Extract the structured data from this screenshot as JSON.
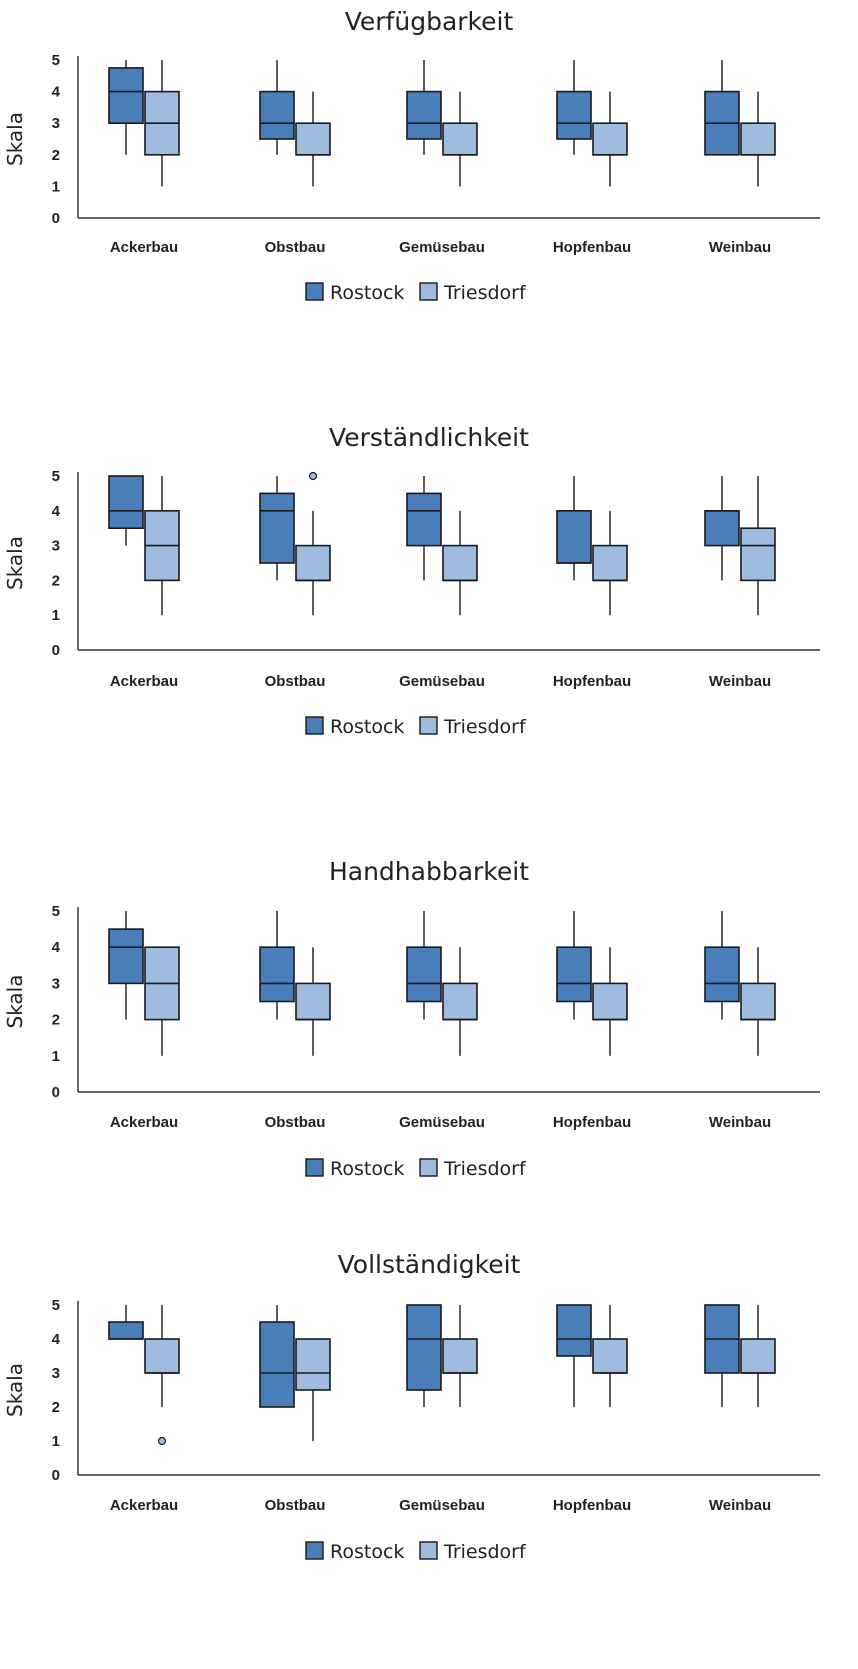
{
  "colors": {
    "Rostock": "#4a7ebb",
    "Triesdorf": "#9ebbe0"
  },
  "chart_data": [
    {
      "type": "boxplot",
      "title": "Verfügbarkeit",
      "ylabel": "Skala",
      "yticks": [
        "0",
        "1",
        "2",
        "3",
        "4",
        "5"
      ],
      "ylim": [
        0,
        5
      ],
      "categories": [
        "Ackerbau",
        "Obstbau",
        "Gemüsebau",
        "Hopfenbau",
        "Weinbau"
      ],
      "legend": "bottom-center",
      "series": [
        {
          "name": "Rostock",
          "boxes": [
            {
              "min": 2,
              "q1": 3,
              "median": 4,
              "q3": 4.75,
              "max": 5
            },
            {
              "min": 2,
              "q1": 2.5,
              "median": 3,
              "q3": 4,
              "max": 5
            },
            {
              "min": 2,
              "q1": 2.5,
              "median": 3,
              "q3": 4,
              "max": 5
            },
            {
              "min": 2,
              "q1": 2.5,
              "median": 3,
              "q3": 4,
              "max": 5
            },
            {
              "min": 2,
              "q1": 2,
              "median": 3,
              "q3": 4,
              "max": 5
            }
          ]
        },
        {
          "name": "Triesdorf",
          "boxes": [
            {
              "min": 1,
              "q1": 2,
              "median": 3,
              "q3": 4,
              "max": 5
            },
            {
              "min": 1,
              "q1": 2,
              "median": 2,
              "q3": 3,
              "max": 4
            },
            {
              "min": 1,
              "q1": 2,
              "median": 2,
              "q3": 3,
              "max": 4
            },
            {
              "min": 1,
              "q1": 2,
              "median": 2,
              "q3": 3,
              "max": 4
            },
            {
              "min": 1,
              "q1": 2,
              "median": 2,
              "q3": 3,
              "max": 4
            }
          ]
        }
      ]
    },
    {
      "type": "boxplot",
      "title": "Verständlichkeit",
      "ylabel": "Skala",
      "yticks": [
        "0",
        "1",
        "2",
        "3",
        "4",
        "5"
      ],
      "ylim": [
        0,
        5
      ],
      "categories": [
        "Ackerbau",
        "Obstbau",
        "Gemüsebau",
        "Hopfenbau",
        "Weinbau"
      ],
      "legend": "bottom-center",
      "series": [
        {
          "name": "Rostock",
          "boxes": [
            {
              "min": 3,
              "q1": 3.5,
              "median": 4,
              "q3": 5,
              "max": 5
            },
            {
              "min": 2,
              "q1": 2.5,
              "median": 4,
              "q3": 4.5,
              "max": 5
            },
            {
              "min": 2,
              "q1": 3,
              "median": 4,
              "q3": 4.5,
              "max": 5
            },
            {
              "min": 2,
              "q1": 2.5,
              "median": 2.5,
              "q3": 4,
              "max": 5
            },
            {
              "min": 2,
              "q1": 3,
              "median": 4,
              "q3": 4,
              "max": 5
            }
          ]
        },
        {
          "name": "Triesdorf",
          "boxes": [
            {
              "min": 1,
              "q1": 2,
              "median": 3,
              "q3": 4,
              "max": 5
            },
            {
              "min": 1,
              "q1": 2,
              "median": 2,
              "q3": 3,
              "max": 4,
              "outliers": [
                5
              ]
            },
            {
              "min": 1,
              "q1": 2,
              "median": 2,
              "q3": 3,
              "max": 4
            },
            {
              "min": 1,
              "q1": 2,
              "median": 2,
              "q3": 3,
              "max": 4
            },
            {
              "min": 1,
              "q1": 2,
              "median": 3,
              "q3": 3.5,
              "max": 5
            }
          ]
        }
      ]
    },
    {
      "type": "boxplot",
      "title": "Handhabbarkeit",
      "ylabel": "Skala",
      "yticks": [
        "0",
        "1",
        "2",
        "3",
        "4",
        "5"
      ],
      "ylim": [
        0,
        5
      ],
      "categories": [
        "Ackerbau",
        "Obstbau",
        "Gemüsebau",
        "Hopfenbau",
        "Weinbau"
      ],
      "legend": "bottom-center",
      "series": [
        {
          "name": "Rostock",
          "boxes": [
            {
              "min": 2,
              "q1": 3,
              "median": 4,
              "q3": 4.5,
              "max": 5
            },
            {
              "min": 2,
              "q1": 2.5,
              "median": 3,
              "q3": 4,
              "max": 5
            },
            {
              "min": 2,
              "q1": 2.5,
              "median": 3,
              "q3": 4,
              "max": 5
            },
            {
              "min": 2,
              "q1": 2.5,
              "median": 3,
              "q3": 4,
              "max": 5
            },
            {
              "min": 2,
              "q1": 2.5,
              "median": 3,
              "q3": 4,
              "max": 5
            }
          ]
        },
        {
          "name": "Triesdorf",
          "boxes": [
            {
              "min": 1,
              "q1": 2,
              "median": 3,
              "q3": 4,
              "max": 4
            },
            {
              "min": 1,
              "q1": 2,
              "median": 2,
              "q3": 3,
              "max": 4
            },
            {
              "min": 1,
              "q1": 2,
              "median": 2,
              "q3": 3,
              "max": 4
            },
            {
              "min": 1,
              "q1": 2,
              "median": 2,
              "q3": 3,
              "max": 4
            },
            {
              "min": 1,
              "q1": 2,
              "median": 2,
              "q3": 3,
              "max": 4
            }
          ]
        }
      ]
    },
    {
      "type": "boxplot",
      "title": "Vollständigkeit",
      "ylabel": "Skala",
      "yticks": [
        "0",
        "1",
        "2",
        "3",
        "4",
        "5"
      ],
      "ylim": [
        0,
        5
      ],
      "categories": [
        "Ackerbau",
        "Obstbau",
        "Gemüsebau",
        "Hopfenbau",
        "Weinbau"
      ],
      "legend": "bottom-center",
      "series": [
        {
          "name": "Rostock",
          "boxes": [
            {
              "min": 4,
              "q1": 4,
              "median": 4,
              "q3": 4.5,
              "max": 5
            },
            {
              "min": 2,
              "q1": 2,
              "median": 3,
              "q3": 4.5,
              "max": 5
            },
            {
              "min": 2,
              "q1": 2.5,
              "median": 4,
              "q3": 5,
              "max": 5
            },
            {
              "min": 2,
              "q1": 3.5,
              "median": 4,
              "q3": 5,
              "max": 5
            },
            {
              "min": 2,
              "q1": 3,
              "median": 4,
              "q3": 5,
              "max": 5
            }
          ]
        },
        {
          "name": "Triesdorf",
          "boxes": [
            {
              "min": 2,
              "q1": 3,
              "median": 3,
              "q3": 4,
              "max": 5,
              "outliers": [
                1
              ]
            },
            {
              "min": 1,
              "q1": 2.5,
              "median": 3,
              "q3": 4,
              "max": 4
            },
            {
              "min": 2,
              "q1": 3,
              "median": 3,
              "q3": 4,
              "max": 5
            },
            {
              "min": 2,
              "q1": 3,
              "median": 3,
              "q3": 4,
              "max": 5
            },
            {
              "min": 2,
              "q1": 3,
              "median": 3,
              "q3": 4,
              "max": 5
            }
          ]
        }
      ]
    }
  ]
}
